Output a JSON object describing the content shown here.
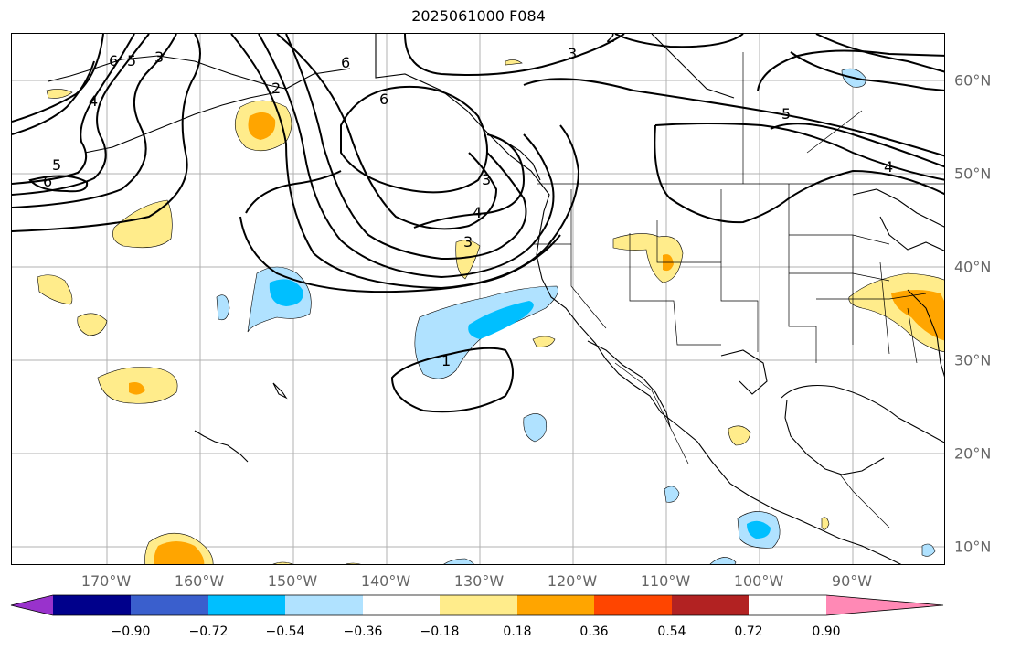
{
  "title": "2025061000 F084",
  "longitude_labels": [
    "170°W",
    "160°W",
    "150°W",
    "140°W",
    "130°W",
    "120°W",
    "110°W",
    "100°W",
    "90°W"
  ],
  "latitude_labels": [
    "60°N",
    "50°N",
    "40°N",
    "30°N",
    "20°N",
    "10°N"
  ],
  "contour_labels": [
    "6",
    "5",
    "3",
    "4",
    "6",
    "2",
    "6",
    "3",
    "2",
    "5",
    "4",
    "5",
    "6",
    "3",
    "4",
    "3",
    "1"
  ],
  "colorbar": {
    "tick_labels": [
      "−0.90",
      "−0.72",
      "−0.54",
      "−0.36",
      "−0.18",
      "0.18",
      "0.36",
      "0.54",
      "0.72",
      "0.90"
    ],
    "colors": [
      "#9932cc",
      "#00008b",
      "#3a5fcd",
      "#00bfff",
      "#b0e2ff",
      "#ffffff",
      "#ffec8b",
      "#ffa500",
      "#ff4500",
      "#b22222",
      "#ff89b5"
    ]
  },
  "shading_colors": {
    "negative_light": "#b0e2ff",
    "negative_mid": "#00bfff",
    "positive_light": "#ffec8b",
    "positive_mid": "#ffa500"
  }
}
